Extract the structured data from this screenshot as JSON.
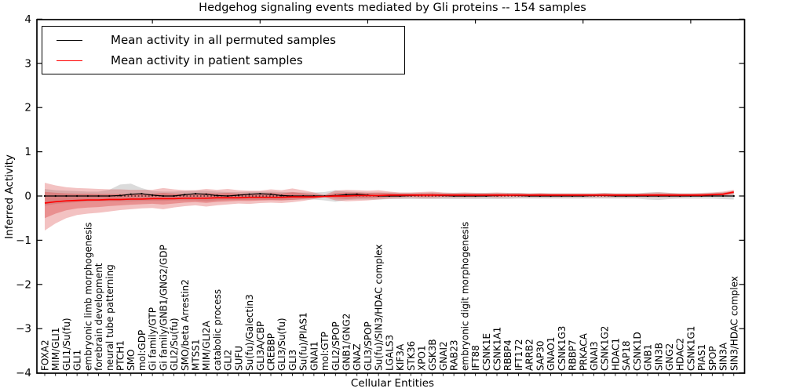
{
  "chart_data": {
    "type": "line",
    "title": "Hedgehog signaling events mediated by Gli proteins -- 154 samples",
    "xlabel": "Cellular Entities",
    "ylabel": "Inferred Activity",
    "ylim": [
      -4,
      4
    ],
    "ytick_labels": [
      "4",
      "3",
      "2",
      "1",
      "0",
      "−1",
      "−2",
      "−3",
      "−4"
    ],
    "ytick_values": [
      4,
      3,
      2,
      1,
      0,
      -1,
      -2,
      -3,
      -4
    ],
    "zero_line": true,
    "legend_position": "upper left",
    "categories": [
      "FOXA2",
      "MIM/GLI1",
      "GLI1/Su(fu)",
      "GLI1",
      "embryonic limb morphogenesis",
      "forebrain development",
      "neural tube patterning",
      "PTCH1",
      "SMO",
      "mol:GDP",
      "Gi family/GTP",
      "Gi family/GNB1/GNG2/GDP",
      "GLI2/Su(fu)",
      "SMO/beta Arrestin2",
      "MTSS1",
      "MIM/GLI2A",
      "catabolic process",
      "GLI2",
      "SUFU",
      "Su(fu)/Galectin3",
      "GLI3A/CBP",
      "CREBBP",
      "GLI3/Su(fu)",
      "GLI3",
      "Su(fu)/PIAS1",
      "GNAI1",
      "mol:GTP",
      "GLI2/SPOP",
      "GNB1/GNG2",
      "GNAZ",
      "GLI3/SPOP",
      "Su(fu)/SIN3/HDAC complex",
      "LGALS3",
      "KIF3A",
      "STK36",
      "XPO1",
      "GSK3B",
      "GNAI2",
      "RAB23",
      "embryonic digit morphogenesis",
      "IFT88",
      "CSNK1E",
      "CSNK1A1",
      "RBBP4",
      "IFT172",
      "ARRB2",
      "SAP30",
      "GNAO1",
      "CSNK1G3",
      "RBBP7",
      "PRKACA",
      "GNAI3",
      "CSNK1G2",
      "HDAC1",
      "SAP18",
      "CSNK1D",
      "GNB1",
      "SIN3B",
      "GNG2",
      "HDAC2",
      "CSNK1G1",
      "PIAS1",
      "SPOP",
      "SIN3A",
      "SIN3/HDAC complex"
    ],
    "series": [
      {
        "name": "Mean activity in all permuted samples",
        "color": "#000000",
        "band_color": "#999999",
        "values": [
          0.0,
          0.0,
          0.0,
          0.0,
          0.0,
          0.0,
          0.0,
          0.01,
          0.04,
          0.05,
          0.02,
          0.0,
          0.0,
          0.03,
          0.05,
          0.04,
          0.01,
          0.0,
          0.02,
          0.04,
          0.05,
          0.04,
          0.01,
          0.0,
          0.0,
          0.0,
          0.0,
          0.01,
          0.03,
          0.04,
          0.02,
          0.0,
          0.0,
          0.0,
          0.01,
          0.02,
          0.02,
          0.01,
          0.0,
          0.0,
          0.0,
          0.0,
          0.01,
          0.02,
          0.01,
          0.0,
          0.0,
          0.0,
          0.0,
          0.0,
          0.0,
          0.01,
          0.01,
          0.0,
          0.0,
          0.0,
          0.0,
          0.0,
          0.0,
          0.0,
          0.0,
          0.0,
          0.0,
          0.0,
          0.0
        ],
        "band_upper": [
          0.16,
          0.13,
          0.12,
          0.11,
          0.1,
          0.1,
          0.14,
          0.26,
          0.28,
          0.18,
          0.11,
          0.1,
          0.1,
          0.11,
          0.12,
          0.12,
          0.1,
          0.09,
          0.09,
          0.1,
          0.1,
          0.1,
          0.09,
          0.09,
          0.08,
          0.08,
          0.09,
          0.13,
          0.1,
          0.09,
          0.08,
          0.08,
          0.08,
          0.07,
          0.07,
          0.07,
          0.08,
          0.07,
          0.07,
          0.07,
          0.07,
          0.07,
          0.07,
          0.07,
          0.07,
          0.06,
          0.06,
          0.06,
          0.06,
          0.06,
          0.06,
          0.06,
          0.07,
          0.06,
          0.06,
          0.06,
          0.08,
          0.09,
          0.07,
          0.06,
          0.06,
          0.06,
          0.07,
          0.08,
          0.1
        ],
        "band_lower": [
          -0.22,
          -0.18,
          -0.16,
          -0.14,
          -0.13,
          -0.12,
          -0.12,
          -0.12,
          -0.12,
          -0.11,
          -0.11,
          -0.11,
          -0.1,
          -0.1,
          -0.1,
          -0.12,
          -0.1,
          -0.09,
          -0.09,
          -0.09,
          -0.09,
          -0.09,
          -0.09,
          -0.09,
          -0.08,
          -0.08,
          -0.1,
          -0.13,
          -0.09,
          -0.08,
          -0.08,
          -0.08,
          -0.07,
          -0.07,
          -0.07,
          -0.07,
          -0.07,
          -0.07,
          -0.07,
          -0.07,
          -0.07,
          -0.07,
          -0.07,
          -0.07,
          -0.06,
          -0.06,
          -0.06,
          -0.06,
          -0.06,
          -0.06,
          -0.06,
          -0.06,
          -0.06,
          -0.06,
          -0.06,
          -0.06,
          -0.08,
          -0.09,
          -0.07,
          -0.06,
          -0.06,
          -0.06,
          -0.06,
          -0.07,
          -0.08
        ]
      },
      {
        "name": "Mean activity in patient samples",
        "color": "#ff0000",
        "band_color": "#d94040",
        "values": [
          -0.16,
          -0.13,
          -0.11,
          -0.1,
          -0.09,
          -0.09,
          -0.08,
          -0.08,
          -0.07,
          -0.07,
          -0.06,
          -0.06,
          -0.06,
          -0.05,
          -0.05,
          -0.05,
          -0.04,
          -0.04,
          -0.04,
          -0.03,
          -0.03,
          -0.03,
          -0.03,
          -0.02,
          -0.02,
          -0.02,
          -0.01,
          0.0,
          0.0,
          0.01,
          0.01,
          0.01,
          0.02,
          0.02,
          0.02,
          0.02,
          0.02,
          0.02,
          0.02,
          0.02,
          0.02,
          0.02,
          0.02,
          0.02,
          0.02,
          0.02,
          0.02,
          0.02,
          0.02,
          0.02,
          0.02,
          0.02,
          0.02,
          0.02,
          0.02,
          0.02,
          0.02,
          0.02,
          0.02,
          0.02,
          0.02,
          0.02,
          0.03,
          0.04,
          0.09
        ],
        "band_upper": [
          0.3,
          0.24,
          0.2,
          0.18,
          0.17,
          0.16,
          0.15,
          0.15,
          0.14,
          0.14,
          0.14,
          0.18,
          0.15,
          0.13,
          0.13,
          0.16,
          0.14,
          0.16,
          0.13,
          0.12,
          0.12,
          0.15,
          0.13,
          0.17,
          0.13,
          0.08,
          0.03,
          0.12,
          0.14,
          0.13,
          0.12,
          0.13,
          0.1,
          0.08,
          0.08,
          0.09,
          0.1,
          0.08,
          0.07,
          0.08,
          0.07,
          0.07,
          0.08,
          0.07,
          0.07,
          0.06,
          0.07,
          0.06,
          0.06,
          0.06,
          0.06,
          0.06,
          0.07,
          0.06,
          0.06,
          0.06,
          0.07,
          0.08,
          0.07,
          0.06,
          0.06,
          0.07,
          0.08,
          0.1,
          0.14
        ],
        "band_lower": [
          -0.78,
          -0.62,
          -0.5,
          -0.43,
          -0.4,
          -0.38,
          -0.35,
          -0.32,
          -0.3,
          -0.28,
          -0.27,
          -0.3,
          -0.26,
          -0.23,
          -0.21,
          -0.24,
          -0.21,
          -0.19,
          -0.17,
          -0.18,
          -0.16,
          -0.15,
          -0.16,
          -0.14,
          -0.11,
          -0.07,
          -0.03,
          -0.1,
          -0.12,
          -0.11,
          -0.1,
          -0.08,
          -0.06,
          -0.05,
          -0.04,
          -0.05,
          -0.05,
          -0.04,
          -0.04,
          -0.04,
          -0.04,
          -0.03,
          -0.04,
          -0.03,
          -0.03,
          -0.03,
          -0.03,
          -0.03,
          -0.03,
          -0.03,
          -0.03,
          -0.03,
          -0.03,
          -0.03,
          -0.03,
          -0.03,
          -0.03,
          -0.03,
          -0.03,
          -0.03,
          -0.02,
          -0.02,
          -0.01,
          0.0,
          0.03
        ]
      }
    ]
  }
}
